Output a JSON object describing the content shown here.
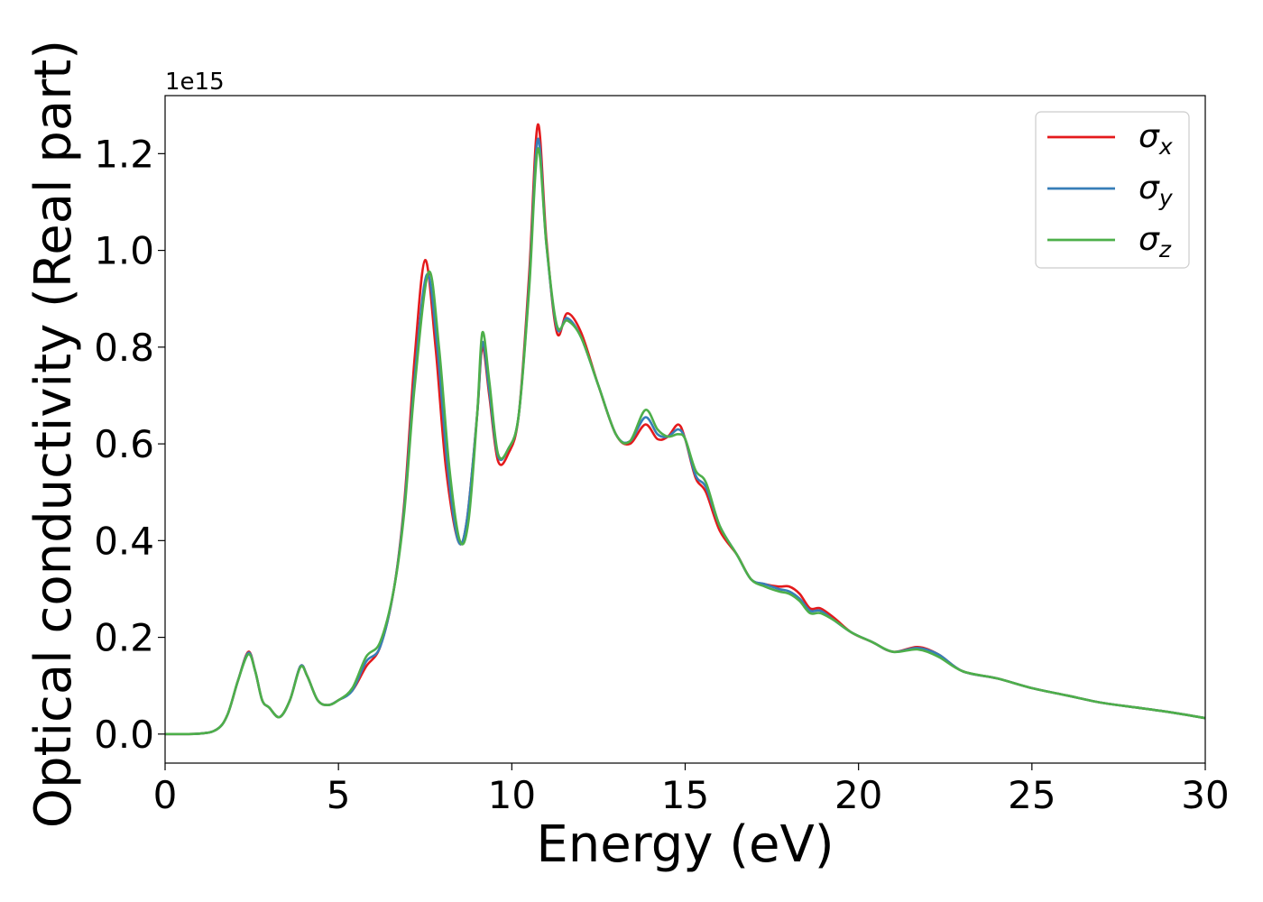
{
  "chart_data": {
    "type": "line",
    "xlabel": "Energy (eV)",
    "ylabel": "Optical conductivity (Real part)",
    "offset_text": "1e15",
    "scale": 1000000000000000.0,
    "xlim": [
      0,
      30
    ],
    "ylim": [
      -0.06,
      1.32
    ],
    "xticks": [
      0,
      5,
      10,
      15,
      20,
      25,
      30
    ],
    "yticks": [
      0.0,
      0.2,
      0.4,
      0.6,
      0.8,
      1.0,
      1.2
    ],
    "xtick_labels": [
      "0",
      "5",
      "10",
      "15",
      "20",
      "25",
      "30"
    ],
    "ytick_labels": [
      "0.0",
      "0.2",
      "0.4",
      "0.6",
      "0.8",
      "1.0",
      "1.2"
    ],
    "grid": false,
    "legend_position": "top-right",
    "series": [
      {
        "name": "σx",
        "sym": "σ",
        "sub": "x",
        "color": "#e41a1c",
        "points": [
          [
            0,
            0
          ],
          [
            1,
            0.001
          ],
          [
            1.5,
            0.01
          ],
          [
            1.8,
            0.04
          ],
          [
            2.1,
            0.11
          ],
          [
            2.4,
            0.17
          ],
          [
            2.6,
            0.13
          ],
          [
            2.8,
            0.07
          ],
          [
            3.0,
            0.055
          ],
          [
            3.3,
            0.035
          ],
          [
            3.6,
            0.07
          ],
          [
            3.9,
            0.14
          ],
          [
            4.1,
            0.12
          ],
          [
            4.4,
            0.07
          ],
          [
            4.7,
            0.06
          ],
          [
            5.0,
            0.07
          ],
          [
            5.4,
            0.09
          ],
          [
            5.8,
            0.14
          ],
          [
            6.2,
            0.18
          ],
          [
            6.6,
            0.3
          ],
          [
            6.9,
            0.48
          ],
          [
            7.2,
            0.78
          ],
          [
            7.5,
            0.98
          ],
          [
            7.8,
            0.8
          ],
          [
            8.1,
            0.55
          ],
          [
            8.45,
            0.4
          ],
          [
            8.7,
            0.44
          ],
          [
            9.0,
            0.66
          ],
          [
            9.15,
            0.8
          ],
          [
            9.35,
            0.7
          ],
          [
            9.6,
            0.565
          ],
          [
            9.9,
            0.58
          ],
          [
            10.2,
            0.66
          ],
          [
            10.5,
            0.95
          ],
          [
            10.75,
            1.26
          ],
          [
            11.0,
            1.02
          ],
          [
            11.3,
            0.83
          ],
          [
            11.6,
            0.87
          ],
          [
            12.0,
            0.83
          ],
          [
            12.5,
            0.72
          ],
          [
            13.0,
            0.62
          ],
          [
            13.4,
            0.6
          ],
          [
            13.85,
            0.64
          ],
          [
            14.2,
            0.61
          ],
          [
            14.5,
            0.615
          ],
          [
            14.8,
            0.64
          ],
          [
            15.0,
            0.61
          ],
          [
            15.3,
            0.53
          ],
          [
            15.6,
            0.5
          ],
          [
            16.0,
            0.42
          ],
          [
            16.5,
            0.37
          ],
          [
            16.9,
            0.32
          ],
          [
            17.3,
            0.31
          ],
          [
            17.7,
            0.305
          ],
          [
            18.0,
            0.305
          ],
          [
            18.3,
            0.29
          ],
          [
            18.6,
            0.26
          ],
          [
            18.9,
            0.26
          ],
          [
            19.3,
            0.24
          ],
          [
            19.8,
            0.21
          ],
          [
            20.4,
            0.19
          ],
          [
            21.0,
            0.17
          ],
          [
            21.7,
            0.18
          ],
          [
            22.3,
            0.165
          ],
          [
            23.0,
            0.13
          ],
          [
            24.0,
            0.115
          ],
          [
            25.0,
            0.095
          ],
          [
            26.0,
            0.08
          ],
          [
            27.0,
            0.065
          ],
          [
            28.0,
            0.055
          ],
          [
            29.0,
            0.045
          ],
          [
            30.0,
            0.033
          ]
        ]
      },
      {
        "name": "σy",
        "sym": "σ",
        "sub": "y",
        "color": "#377eb8",
        "points": [
          [
            0,
            0
          ],
          [
            1,
            0.001
          ],
          [
            1.5,
            0.01
          ],
          [
            1.8,
            0.04
          ],
          [
            2.1,
            0.11
          ],
          [
            2.4,
            0.168
          ],
          [
            2.6,
            0.13
          ],
          [
            2.8,
            0.07
          ],
          [
            3.0,
            0.055
          ],
          [
            3.3,
            0.035
          ],
          [
            3.6,
            0.07
          ],
          [
            3.9,
            0.14
          ],
          [
            4.1,
            0.12
          ],
          [
            4.4,
            0.07
          ],
          [
            4.7,
            0.06
          ],
          [
            5.0,
            0.07
          ],
          [
            5.4,
            0.09
          ],
          [
            5.8,
            0.15
          ],
          [
            6.2,
            0.18
          ],
          [
            6.6,
            0.3
          ],
          [
            6.9,
            0.47
          ],
          [
            7.2,
            0.74
          ],
          [
            7.55,
            0.95
          ],
          [
            7.85,
            0.8
          ],
          [
            8.15,
            0.55
          ],
          [
            8.45,
            0.4
          ],
          [
            8.7,
            0.44
          ],
          [
            9.0,
            0.66
          ],
          [
            9.15,
            0.81
          ],
          [
            9.35,
            0.71
          ],
          [
            9.6,
            0.575
          ],
          [
            9.9,
            0.59
          ],
          [
            10.2,
            0.66
          ],
          [
            10.5,
            0.93
          ],
          [
            10.75,
            1.23
          ],
          [
            11.0,
            1.01
          ],
          [
            11.3,
            0.84
          ],
          [
            11.6,
            0.86
          ],
          [
            12.0,
            0.82
          ],
          [
            12.5,
            0.72
          ],
          [
            13.0,
            0.62
          ],
          [
            13.4,
            0.605
          ],
          [
            13.85,
            0.655
          ],
          [
            14.2,
            0.62
          ],
          [
            14.5,
            0.615
          ],
          [
            14.8,
            0.63
          ],
          [
            15.0,
            0.61
          ],
          [
            15.3,
            0.535
          ],
          [
            15.6,
            0.51
          ],
          [
            16.0,
            0.43
          ],
          [
            16.5,
            0.37
          ],
          [
            16.9,
            0.32
          ],
          [
            17.3,
            0.31
          ],
          [
            17.7,
            0.3
          ],
          [
            18.0,
            0.295
          ],
          [
            18.3,
            0.28
          ],
          [
            18.6,
            0.255
          ],
          [
            18.9,
            0.255
          ],
          [
            19.3,
            0.235
          ],
          [
            19.8,
            0.21
          ],
          [
            20.4,
            0.19
          ],
          [
            21.0,
            0.17
          ],
          [
            21.7,
            0.178
          ],
          [
            22.3,
            0.165
          ],
          [
            23.0,
            0.13
          ],
          [
            24.0,
            0.115
          ],
          [
            25.0,
            0.095
          ],
          [
            26.0,
            0.08
          ],
          [
            27.0,
            0.065
          ],
          [
            28.0,
            0.055
          ],
          [
            29.0,
            0.045
          ],
          [
            30.0,
            0.033
          ]
        ]
      },
      {
        "name": "σz",
        "sym": "σ",
        "sub": "z",
        "color": "#4daf4a",
        "points": [
          [
            0,
            0
          ],
          [
            1,
            0.001
          ],
          [
            1.5,
            0.01
          ],
          [
            1.8,
            0.04
          ],
          [
            2.1,
            0.11
          ],
          [
            2.4,
            0.165
          ],
          [
            2.6,
            0.13
          ],
          [
            2.8,
            0.07
          ],
          [
            3.0,
            0.055
          ],
          [
            3.3,
            0.035
          ],
          [
            3.6,
            0.07
          ],
          [
            3.9,
            0.138
          ],
          [
            4.1,
            0.12
          ],
          [
            4.4,
            0.07
          ],
          [
            4.7,
            0.06
          ],
          [
            5.0,
            0.07
          ],
          [
            5.4,
            0.095
          ],
          [
            5.8,
            0.16
          ],
          [
            6.2,
            0.19
          ],
          [
            6.6,
            0.3
          ],
          [
            6.9,
            0.46
          ],
          [
            7.2,
            0.72
          ],
          [
            7.6,
            0.955
          ],
          [
            7.9,
            0.8
          ],
          [
            8.2,
            0.55
          ],
          [
            8.5,
            0.4
          ],
          [
            8.75,
            0.44
          ],
          [
            9.0,
            0.66
          ],
          [
            9.15,
            0.83
          ],
          [
            9.35,
            0.73
          ],
          [
            9.6,
            0.58
          ],
          [
            9.9,
            0.59
          ],
          [
            10.2,
            0.66
          ],
          [
            10.5,
            0.92
          ],
          [
            10.75,
            1.21
          ],
          [
            11.0,
            1.01
          ],
          [
            11.3,
            0.845
          ],
          [
            11.6,
            0.855
          ],
          [
            12.0,
            0.82
          ],
          [
            12.5,
            0.72
          ],
          [
            13.0,
            0.62
          ],
          [
            13.4,
            0.605
          ],
          [
            13.85,
            0.67
          ],
          [
            14.2,
            0.63
          ],
          [
            14.5,
            0.615
          ],
          [
            14.8,
            0.62
          ],
          [
            15.0,
            0.61
          ],
          [
            15.3,
            0.545
          ],
          [
            15.6,
            0.52
          ],
          [
            16.0,
            0.43
          ],
          [
            16.5,
            0.37
          ],
          [
            16.9,
            0.32
          ],
          [
            17.3,
            0.305
          ],
          [
            17.7,
            0.295
          ],
          [
            18.0,
            0.29
          ],
          [
            18.3,
            0.275
          ],
          [
            18.6,
            0.25
          ],
          [
            18.9,
            0.25
          ],
          [
            19.3,
            0.235
          ],
          [
            19.8,
            0.21
          ],
          [
            20.4,
            0.19
          ],
          [
            21.0,
            0.17
          ],
          [
            21.7,
            0.175
          ],
          [
            22.3,
            0.16
          ],
          [
            23.0,
            0.13
          ],
          [
            24.0,
            0.115
          ],
          [
            25.0,
            0.095
          ],
          [
            26.0,
            0.08
          ],
          [
            27.0,
            0.065
          ],
          [
            28.0,
            0.055
          ],
          [
            29.0,
            0.045
          ],
          [
            30.0,
            0.033
          ]
        ]
      }
    ]
  }
}
